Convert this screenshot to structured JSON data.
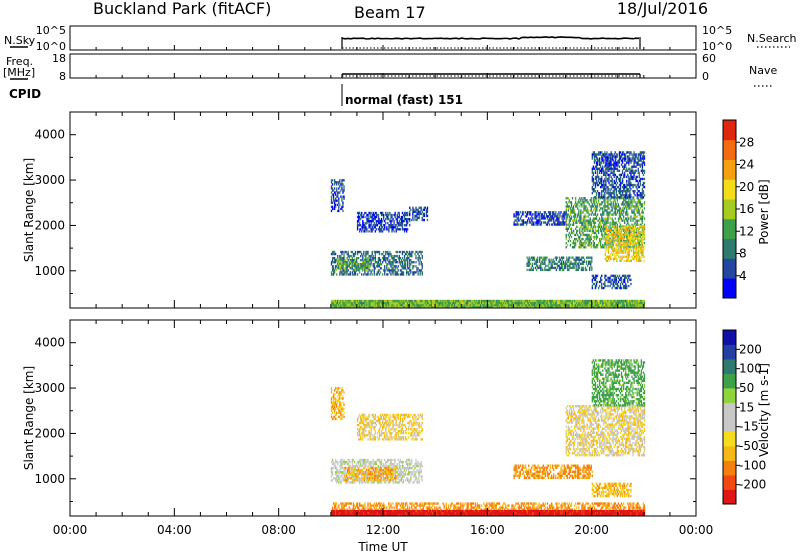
{
  "header": {
    "title": "Buckland Park (fitACF)",
    "beam": "Beam 17",
    "date": "18/Jul/2016"
  },
  "strip_nsky": {
    "left_label": "N.Sky",
    "right_label": "N.Search",
    "left_ticks": [
      "10^5",
      "10^0"
    ],
    "right_ticks": [
      "10^5",
      "10^0"
    ]
  },
  "strip_freq": {
    "left_label_1": "Freq.",
    "left_label_2": "[MHz]",
    "right_label": "Nave",
    "left_ticks": [
      "18",
      "8"
    ],
    "right_ticks": [
      "60",
      "0"
    ]
  },
  "cpid": {
    "label": "CPID",
    "mode_text": "normal (fast) 151"
  },
  "colors": {
    "power_scale": [
      "#0000ff",
      "#23479f",
      "#2f7a6e",
      "#3fa04a",
      "#a6cc1f",
      "#f3dc18",
      "#f5a011",
      "#f36b11",
      "#e0250f"
    ],
    "velocity_scale": [
      "#e01515",
      "#f04a12",
      "#f5800f",
      "#f5b816",
      "#f5dc1e",
      "#c8c8c8",
      "#c8c8c8",
      "#8fd43a",
      "#3fa04a",
      "#2f7a6e",
      "#233f9f",
      "#1010a8"
    ]
  },
  "chart_data": [
    {
      "type": "heatmap",
      "panel": "power",
      "ylabel": "Slant Range [km]",
      "y_ticks": [
        "1000",
        "2000",
        "3000",
        "4000"
      ],
      "ylim": [
        180,
        4500
      ],
      "xlim": [
        0,
        24
      ],
      "colorbar": {
        "label": "Power [dB]",
        "ticks": [
          "4",
          "8",
          "12",
          "16",
          "20",
          "24",
          "28"
        ],
        "range": [
          0,
          32
        ]
      },
      "echo_regions": [
        {
          "t_start": 10.0,
          "t_end": 10.5,
          "r_start": 2300,
          "r_end": 3000,
          "value": 6
        },
        {
          "t_start": 11.0,
          "t_end": 13.0,
          "r_start": 1850,
          "r_end": 2300,
          "value": 5
        },
        {
          "t_start": 13.0,
          "t_end": 13.7,
          "r_start": 2100,
          "r_end": 2400,
          "value": 5
        },
        {
          "t_start": 10.0,
          "t_end": 13.5,
          "r_start": 900,
          "r_end": 1400,
          "value": 8
        },
        {
          "t_start": 10.2,
          "t_end": 11.5,
          "r_start": 1000,
          "r_end": 1250,
          "value": 13
        },
        {
          "t_start": 17.0,
          "t_end": 19.0,
          "r_start": 2000,
          "r_end": 2300,
          "value": 5
        },
        {
          "t_start": 17.5,
          "t_end": 20.0,
          "r_start": 1000,
          "r_end": 1300,
          "value": 9
        },
        {
          "t_start": 19.0,
          "t_end": 22.0,
          "r_start": 1500,
          "r_end": 2600,
          "value": 12
        },
        {
          "t_start": 20.5,
          "t_end": 22.0,
          "r_start": 1200,
          "r_end": 2000,
          "value": 20
        },
        {
          "t_start": 20.0,
          "t_end": 22.0,
          "r_start": 2600,
          "r_end": 3600,
          "value": 6
        },
        {
          "t_start": 20.5,
          "t_end": 21.0,
          "r_start": 3300,
          "r_end": 3500,
          "value": 4
        },
        {
          "t_start": 20.0,
          "t_end": 21.5,
          "r_start": 600,
          "r_end": 900,
          "value": 6
        },
        {
          "t_start": 10.0,
          "t_end": 22.0,
          "r_start": 180,
          "r_end": 350,
          "value": 14
        }
      ]
    },
    {
      "type": "heatmap",
      "panel": "velocity",
      "ylabel": "Slant Range [km]",
      "xlabel": "Time UT",
      "x_ticks": [
        "00:00",
        "04:00",
        "08:00",
        "12:00",
        "16:00",
        "20:00",
        "00:00"
      ],
      "y_ticks": [
        "1000",
        "2000",
        "3000",
        "4000"
      ],
      "ylim": [
        180,
        4500
      ],
      "xlim": [
        0,
        24
      ],
      "colorbar": {
        "label": "Velocity [m s-1]",
        "ticks": [
          "-200",
          "-100",
          "-50",
          "-15",
          "15",
          "50",
          "100",
          "200"
        ],
        "range": [
          -250,
          250
        ]
      },
      "echo_regions": [
        {
          "t_start": 10.0,
          "t_end": 10.5,
          "r_start": 2300,
          "r_end": 3000,
          "value": -30
        },
        {
          "t_start": 11.0,
          "t_end": 13.5,
          "r_start": 1850,
          "r_end": 2400,
          "value": -10
        },
        {
          "t_start": 10.0,
          "t_end": 13.5,
          "r_start": 900,
          "r_end": 1400,
          "value": 30
        },
        {
          "t_start": 10.5,
          "t_end": 12.5,
          "r_start": 950,
          "r_end": 1250,
          "value": -40
        },
        {
          "t_start": 17.0,
          "t_end": 20.0,
          "r_start": 1000,
          "r_end": 1300,
          "value": -60
        },
        {
          "t_start": 19.0,
          "t_end": 22.0,
          "r_start": 1500,
          "r_end": 2600,
          "value": 0
        },
        {
          "t_start": 20.0,
          "t_end": 22.0,
          "r_start": 2600,
          "r_end": 3600,
          "value": 120
        },
        {
          "t_start": 20.0,
          "t_end": 21.5,
          "r_start": 600,
          "r_end": 900,
          "value": -30
        },
        {
          "t_start": 10.0,
          "t_end": 22.0,
          "r_start": 300,
          "r_end": 450,
          "value": -60
        },
        {
          "t_start": 10.0,
          "t_end": 22.0,
          "r_start": 180,
          "r_end": 300,
          "value": -220
        }
      ]
    }
  ]
}
